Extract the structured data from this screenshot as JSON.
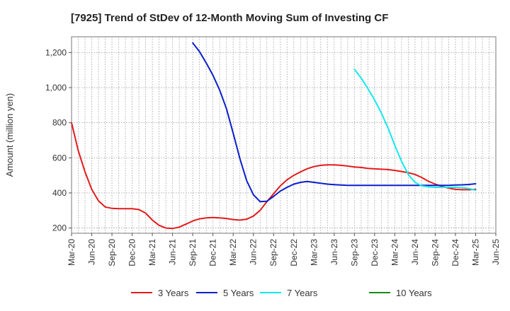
{
  "chart_data": {
    "type": "line",
    "title": "[7925]  Trend of StDev of 12-Month Moving Sum of Investing CF",
    "xlabel": "",
    "ylabel": "Amount (million yen)",
    "ylim": [
      170,
      1290
    ],
    "yticks": [
      200,
      400,
      600,
      800,
      "1,000",
      "1,200"
    ],
    "yticks_values": [
      200,
      400,
      600,
      800,
      1000,
      1200
    ],
    "grid": true,
    "legend_position": "bottom",
    "x_tick_labels": [
      "Mar-20",
      "Jun-20",
      "Sep-20",
      "Dec-20",
      "Mar-21",
      "Jun-21",
      "Sep-21",
      "Dec-21",
      "Mar-22",
      "Jun-22",
      "Sep-22",
      "Dec-22",
      "Mar-23",
      "Jun-23",
      "Sep-23",
      "Dec-23",
      "Mar-24",
      "Jun-24",
      "Sep-24",
      "Dec-24",
      "Mar-25",
      "Jun-25"
    ],
    "series": [
      {
        "name": "3 Years",
        "color": "#e41a1c",
        "x": [
          "Mar-20",
          "Apr-20",
          "May-20",
          "Jun-20",
          "Jul-20",
          "Aug-20",
          "Sep-20",
          "Oct-20",
          "Nov-20",
          "Dec-20",
          "Jan-21",
          "Feb-21",
          "Mar-21",
          "Apr-21",
          "May-21",
          "Jun-21",
          "Jul-21",
          "Aug-21",
          "Sep-21",
          "Oct-21",
          "Nov-21",
          "Dec-21",
          "Jan-22",
          "Feb-22",
          "Mar-22",
          "Apr-22",
          "May-22",
          "Jun-22",
          "Jul-22",
          "Aug-22",
          "Sep-22",
          "Oct-22",
          "Nov-22",
          "Dec-22",
          "Jan-23",
          "Feb-23",
          "Mar-23",
          "Apr-23",
          "May-23",
          "Jun-23",
          "Jul-23",
          "Aug-23",
          "Sep-23",
          "Oct-23",
          "Nov-23",
          "Dec-23",
          "Jan-24",
          "Feb-24",
          "Mar-24",
          "Apr-24",
          "May-24",
          "Jun-24",
          "Jul-24",
          "Aug-24",
          "Sep-24",
          "Oct-24",
          "Nov-24",
          "Dec-24",
          "Jan-25",
          "Feb-25",
          "Mar-25"
        ],
        "values": [
          800,
          640,
          520,
          420,
          355,
          320,
          312,
          310,
          310,
          310,
          305,
          285,
          245,
          215,
          200,
          197,
          205,
          222,
          240,
          252,
          258,
          260,
          258,
          254,
          248,
          245,
          250,
          268,
          300,
          350,
          395,
          440,
          475,
          500,
          520,
          538,
          550,
          557,
          560,
          560,
          557,
          553,
          548,
          545,
          540,
          537,
          535,
          533,
          528,
          522,
          515,
          505,
          488,
          466,
          450,
          437,
          427,
          420,
          418,
          418,
          420
        ]
      },
      {
        "name": "5 Years",
        "color": "#0a1ecc",
        "x": [
          "Sep-21",
          "Oct-21",
          "Nov-21",
          "Dec-21",
          "Jan-22",
          "Feb-22",
          "Mar-22",
          "Apr-22",
          "May-22",
          "Jun-22",
          "Jul-22",
          "Aug-22",
          "Sep-22",
          "Oct-22",
          "Nov-22",
          "Dec-22",
          "Jan-23",
          "Feb-23",
          "Mar-23",
          "Apr-23",
          "May-23",
          "Jun-23",
          "Jul-23",
          "Aug-23",
          "Sep-23",
          "Oct-23",
          "Nov-23",
          "Dec-23",
          "Jan-24",
          "Feb-24",
          "Mar-24",
          "Apr-24",
          "May-24",
          "Jun-24",
          "Jul-24",
          "Aug-24",
          "Sep-24",
          "Oct-24",
          "Nov-24",
          "Dec-24",
          "Jan-25",
          "Feb-25",
          "Mar-25"
        ],
        "values": [
          1255,
          1205,
          1140,
          1070,
          985,
          880,
          740,
          595,
          470,
          390,
          350,
          352,
          380,
          410,
          432,
          450,
          460,
          465,
          460,
          455,
          450,
          447,
          445,
          443,
          443,
          443,
          443,
          443,
          443,
          443,
          443,
          443,
          443,
          443,
          443,
          443,
          443,
          443,
          443,
          445,
          446,
          448,
          452
        ]
      },
      {
        "name": "7 Years",
        "color": "#14e8ee",
        "x": [
          "Sep-23",
          "Oct-23",
          "Nov-23",
          "Dec-23",
          "Jan-24",
          "Feb-24",
          "Mar-24",
          "Apr-24",
          "May-24",
          "Jun-24",
          "Jul-24",
          "Aug-24",
          "Sep-24",
          "Oct-24",
          "Nov-24",
          "Dec-24",
          "Jan-25",
          "Feb-25",
          "Mar-25"
        ],
        "values": [
          1105,
          1055,
          995,
          930,
          855,
          770,
          670,
          580,
          505,
          460,
          440,
          435,
          432,
          432,
          432,
          432,
          430,
          425,
          415
        ]
      },
      {
        "name": "10 Years",
        "color": "#1a8a1a",
        "x": [],
        "values": []
      }
    ]
  }
}
